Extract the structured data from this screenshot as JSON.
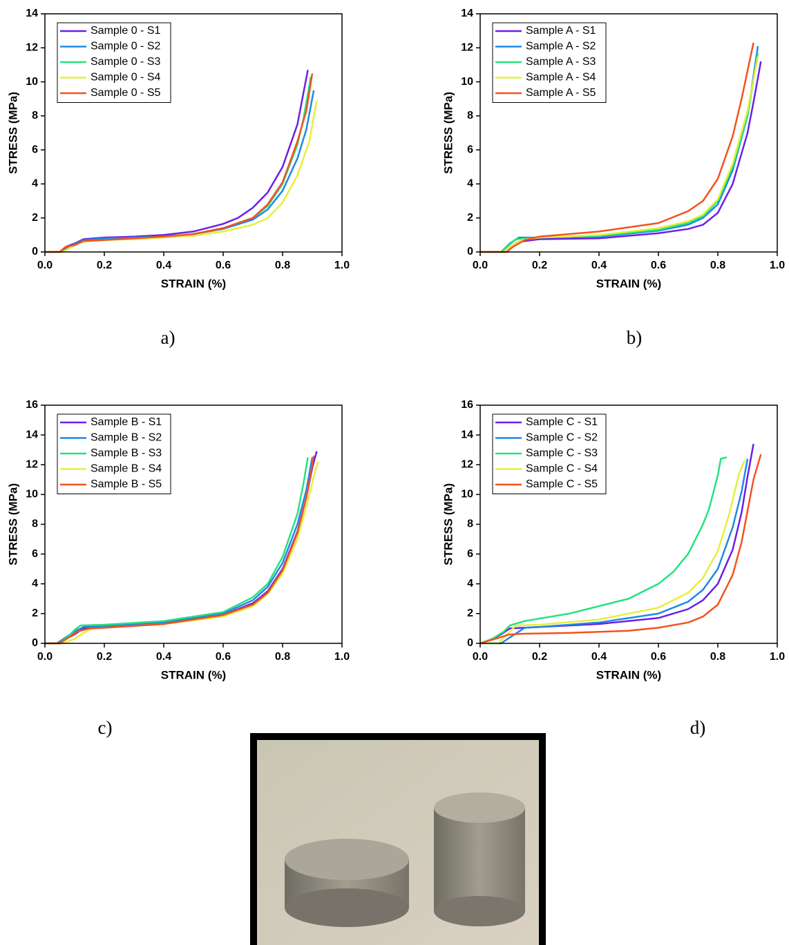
{
  "chart_data": [
    {
      "type": "line",
      "panel_label": "a)",
      "xlabel": "STRAIN (%)",
      "ylabel": "STRESS (MPa)",
      "xlim": [
        0,
        1
      ],
      "ylim": [
        0,
        14
      ],
      "xticks": [
        {
          "value": 0,
          "label": "0.0"
        },
        0.2,
        0.4,
        0.6,
        0.8,
        {
          "value": 1,
          "label": "1.0"
        }
      ],
      "yticks": [
        0,
        2,
        4,
        6,
        8,
        10,
        12,
        14
      ],
      "series": [
        {
          "name": "Sample 0 - S1",
          "color": "#6a1fe8",
          "x": [
            0,
            0.05,
            0.07,
            0.1,
            0.13,
            0.2,
            0.3,
            0.4,
            0.5,
            0.6,
            0.65,
            0.7,
            0.75,
            0.8,
            0.85,
            0.885
          ],
          "values": [
            0,
            0,
            0.3,
            0.5,
            0.75,
            0.85,
            0.9,
            1.0,
            1.2,
            1.65,
            2.0,
            2.6,
            3.5,
            5.0,
            7.5,
            10.7
          ]
        },
        {
          "name": "Sample 0 - S2",
          "color": "#1e88e5",
          "x": [
            0,
            0.05,
            0.08,
            0.13,
            0.2,
            0.3,
            0.4,
            0.5,
            0.6,
            0.7,
            0.75,
            0.8,
            0.85,
            0.88,
            0.905
          ],
          "values": [
            0,
            0,
            0.3,
            0.7,
            0.8,
            0.85,
            0.9,
            1.05,
            1.35,
            1.9,
            2.5,
            3.6,
            5.5,
            7.2,
            9.5
          ]
        },
        {
          "name": "Sample 0 - S3",
          "color": "#25e27c",
          "x": [
            0,
            0.06,
            0.09,
            0.13,
            0.2,
            0.3,
            0.4,
            0.5,
            0.6,
            0.7,
            0.75,
            0.8,
            0.85,
            0.87,
            0.895
          ],
          "values": [
            0,
            0,
            0.3,
            0.6,
            0.7,
            0.8,
            0.9,
            1.05,
            1.4,
            2.0,
            2.7,
            4.0,
            6.3,
            7.8,
            10.3
          ]
        },
        {
          "name": "Sample 0 - S4",
          "color": "#e6ef3a",
          "x": [
            0,
            0.06,
            0.09,
            0.13,
            0.2,
            0.3,
            0.4,
            0.5,
            0.6,
            0.7,
            0.75,
            0.8,
            0.85,
            0.89,
            0.915
          ],
          "values": [
            0,
            0,
            0.3,
            0.6,
            0.7,
            0.75,
            0.85,
            0.95,
            1.2,
            1.6,
            2.0,
            2.9,
            4.5,
            6.5,
            8.9
          ]
        },
        {
          "name": "Sample 0 - S5",
          "color": "#f4511e",
          "x": [
            0,
            0.05,
            0.07,
            0.1,
            0.13,
            0.2,
            0.3,
            0.4,
            0.5,
            0.6,
            0.7,
            0.75,
            0.8,
            0.85,
            0.88,
            0.9
          ],
          "values": [
            0,
            0,
            0.3,
            0.4,
            0.65,
            0.7,
            0.8,
            0.9,
            1.05,
            1.4,
            2.0,
            2.8,
            4.1,
            6.5,
            8.3,
            10.5
          ]
        }
      ]
    },
    {
      "type": "line",
      "panel_label": "b)",
      "xlabel": "STRAIN (%)",
      "ylabel": "STRESS (MPa)",
      "xlim": [
        0,
        1
      ],
      "ylim": [
        0,
        14
      ],
      "xticks": [
        {
          "value": 0,
          "label": "0.0"
        },
        0.2,
        0.4,
        0.6,
        0.8,
        {
          "value": 1,
          "label": "1.0"
        }
      ],
      "yticks": [
        0,
        2,
        4,
        6,
        8,
        10,
        12,
        14
      ],
      "series": [
        {
          "name": "Sample A - S1",
          "color": "#6a1fe8",
          "x": [
            0,
            0.08,
            0.1,
            0.13,
            0.2,
            0.4,
            0.6,
            0.7,
            0.75,
            0.8,
            0.85,
            0.9,
            0.92,
            0.945
          ],
          "values": [
            0,
            0,
            0.3,
            0.6,
            0.75,
            0.8,
            1.1,
            1.35,
            1.6,
            2.3,
            4.0,
            7.0,
            8.8,
            11.2
          ]
        },
        {
          "name": "Sample A - S2",
          "color": "#1e88e5",
          "x": [
            0,
            0.07,
            0.1,
            0.13,
            0.2,
            0.4,
            0.6,
            0.7,
            0.75,
            0.8,
            0.85,
            0.9,
            0.935
          ],
          "values": [
            0,
            0,
            0.5,
            0.85,
            0.85,
            0.9,
            1.25,
            1.6,
            2.0,
            2.8,
            4.8,
            8.0,
            12.1
          ]
        },
        {
          "name": "Sample A - S3",
          "color": "#25e27c",
          "x": [
            0,
            0.07,
            0.09,
            0.12,
            0.2,
            0.4,
            0.6,
            0.7,
            0.75,
            0.8,
            0.85,
            0.9,
            0.935
          ],
          "values": [
            0,
            0,
            0.3,
            0.75,
            0.85,
            0.95,
            1.3,
            1.7,
            2.1,
            3.0,
            5.0,
            8.0,
            11.7
          ]
        },
        {
          "name": "Sample A - S4",
          "color": "#e6ef3a",
          "x": [
            0,
            0.08,
            0.1,
            0.14,
            0.2,
            0.4,
            0.6,
            0.7,
            0.75,
            0.8,
            0.85,
            0.9,
            0.935
          ],
          "values": [
            0,
            0,
            0.3,
            0.7,
            0.85,
            1.0,
            1.4,
            1.8,
            2.2,
            3.1,
            5.2,
            8.3,
            11.5
          ]
        },
        {
          "name": "Sample A - S5",
          "color": "#f4511e",
          "x": [
            0,
            0.09,
            0.11,
            0.15,
            0.2,
            0.4,
            0.6,
            0.7,
            0.75,
            0.8,
            0.85,
            0.88,
            0.92
          ],
          "values": [
            0,
            0,
            0.3,
            0.7,
            0.9,
            1.2,
            1.7,
            2.4,
            3.0,
            4.3,
            6.8,
            9.0,
            12.3
          ]
        }
      ]
    },
    {
      "type": "line",
      "panel_label": "c)",
      "xlabel": "STRAIN (%)",
      "ylabel": "STRESS (MPa)",
      "xlim": [
        0,
        1
      ],
      "ylim": [
        0,
        16
      ],
      "xticks": [
        {
          "value": 0,
          "label": "0.0"
        },
        0.2,
        0.4,
        0.6,
        0.8,
        {
          "value": 1,
          "label": "1.0"
        }
      ],
      "yticks": [
        0,
        2,
        4,
        6,
        8,
        10,
        12,
        14,
        16
      ],
      "series": [
        {
          "name": "Sample B - S1",
          "color": "#6a1fe8",
          "x": [
            0,
            0.04,
            0.07,
            0.1,
            0.13,
            0.2,
            0.4,
            0.6,
            0.7,
            0.75,
            0.8,
            0.85,
            0.88,
            0.9,
            0.915
          ],
          "values": [
            0,
            0,
            0.3,
            0.6,
            1.0,
            1.05,
            1.3,
            1.9,
            2.7,
            3.5,
            5.0,
            7.5,
            9.8,
            11.8,
            12.9
          ]
        },
        {
          "name": "Sample B - S2",
          "color": "#1e88e5",
          "x": [
            0,
            0.04,
            0.07,
            0.1,
            0.13,
            0.2,
            0.4,
            0.6,
            0.7,
            0.75,
            0.8,
            0.85,
            0.88,
            0.9
          ],
          "values": [
            0,
            0,
            0.4,
            0.8,
            1.1,
            1.15,
            1.4,
            2.0,
            2.9,
            3.8,
            5.4,
            8.0,
            10.3,
            12.5
          ]
        },
        {
          "name": "Sample B - S3",
          "color": "#25e27c",
          "x": [
            0,
            0.05,
            0.08,
            0.1,
            0.12,
            0.2,
            0.4,
            0.6,
            0.7,
            0.75,
            0.8,
            0.85,
            0.87,
            0.885
          ],
          "values": [
            0,
            0,
            0.5,
            0.9,
            1.2,
            1.25,
            1.5,
            2.1,
            3.1,
            4.0,
            5.8,
            8.7,
            10.7,
            12.5
          ]
        },
        {
          "name": "Sample B - S4",
          "color": "#e6ef3a",
          "x": [
            0,
            0.06,
            0.1,
            0.13,
            0.16,
            0.2,
            0.4,
            0.6,
            0.7,
            0.75,
            0.8,
            0.85,
            0.88,
            0.91,
            0.92
          ],
          "values": [
            0,
            0,
            0.3,
            0.7,
            1.0,
            1.05,
            1.3,
            1.8,
            2.5,
            3.3,
            4.7,
            7.0,
            9.2,
            11.6,
            12.2
          ]
        },
        {
          "name": "Sample B - S5",
          "color": "#f4511e",
          "x": [
            0,
            0.05,
            0.08,
            0.11,
            0.15,
            0.2,
            0.4,
            0.6,
            0.7,
            0.75,
            0.8,
            0.85,
            0.88,
            0.905
          ],
          "values": [
            0,
            0,
            0.4,
            0.8,
            1.0,
            1.05,
            1.3,
            1.9,
            2.6,
            3.4,
            4.9,
            7.4,
            9.8,
            12.6
          ]
        }
      ]
    },
    {
      "type": "line",
      "panel_label": "d)",
      "xlabel": "STRAIN (%)",
      "ylabel": "STRESS (MPa)",
      "xlim": [
        0,
        1
      ],
      "ylim": [
        0,
        16
      ],
      "xticks": [
        {
          "value": 0,
          "label": "0.0"
        },
        0.2,
        0.4,
        0.6,
        0.8,
        {
          "value": 1,
          "label": "1.0"
        }
      ],
      "yticks": [
        0,
        2,
        4,
        6,
        8,
        10,
        12,
        14,
        16
      ],
      "series": [
        {
          "name": "Sample C - S1",
          "color": "#6a1fe8",
          "x": [
            0,
            0.03,
            0.07,
            0.1,
            0.2,
            0.4,
            0.6,
            0.7,
            0.75,
            0.8,
            0.85,
            0.88,
            0.9,
            0.92
          ],
          "values": [
            0,
            0.2,
            0.6,
            1.0,
            1.1,
            1.3,
            1.7,
            2.3,
            2.9,
            4.0,
            6.3,
            8.8,
            11.2,
            13.4
          ]
        },
        {
          "name": "Sample C - S2",
          "color": "#1e88e5",
          "x": [
            0,
            0.07,
            0.1,
            0.15,
            0.2,
            0.4,
            0.6,
            0.7,
            0.75,
            0.8,
            0.85,
            0.88,
            0.9
          ],
          "values": [
            0,
            0,
            0.4,
            1.05,
            1.1,
            1.4,
            2.0,
            2.8,
            3.6,
            5.0,
            7.8,
            10.2,
            12.4
          ]
        },
        {
          "name": "Sample C - S3",
          "color": "#25e27c",
          "x": [
            0,
            0.04,
            0.08,
            0.1,
            0.15,
            0.3,
            0.5,
            0.6,
            0.65,
            0.7,
            0.75,
            0.77,
            0.8,
            0.81,
            0.83
          ],
          "values": [
            0,
            0.3,
            0.8,
            1.2,
            1.5,
            2.0,
            3.0,
            4.0,
            4.8,
            6.0,
            8.0,
            9.0,
            11.3,
            12.4,
            12.5
          ]
        },
        {
          "name": "Sample C - S4",
          "color": "#e6ef3a",
          "x": [
            0,
            0.06,
            0.09,
            0.12,
            0.2,
            0.4,
            0.6,
            0.7,
            0.75,
            0.8,
            0.84,
            0.87,
            0.89
          ],
          "values": [
            0,
            0,
            0.6,
            1.2,
            1.25,
            1.6,
            2.4,
            3.4,
            4.4,
            6.2,
            8.8,
            11.3,
            12.3
          ]
        },
        {
          "name": "Sample C - S5",
          "color": "#f4511e",
          "x": [
            0,
            0.05,
            0.1,
            0.15,
            0.3,
            0.5,
            0.6,
            0.7,
            0.75,
            0.8,
            0.85,
            0.88,
            0.92,
            0.945
          ],
          "values": [
            0,
            0.3,
            0.6,
            0.65,
            0.7,
            0.85,
            1.05,
            1.4,
            1.8,
            2.6,
            4.6,
            6.8,
            11.0,
            12.7
          ]
        }
      ]
    }
  ]
}
